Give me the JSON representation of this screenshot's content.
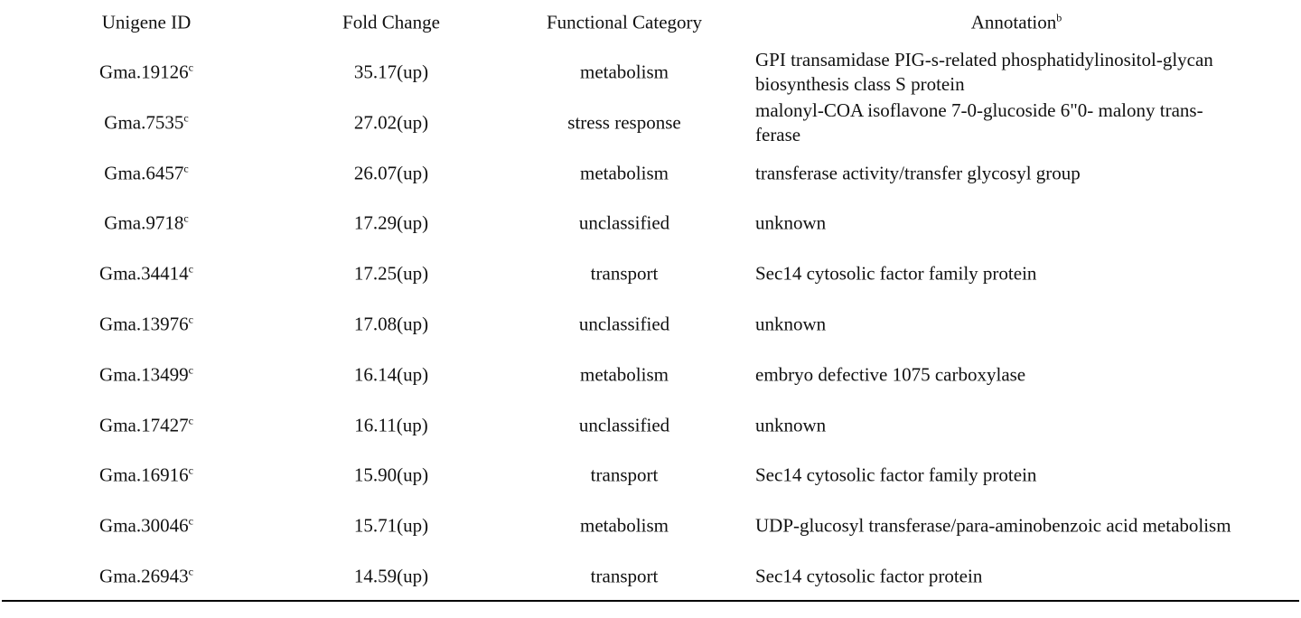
{
  "table": {
    "header": [
      {
        "text": "Unigene ID"
      },
      {
        "text": "Fold Change"
      },
      {
        "text": "Functional Category"
      },
      {
        "text": "Annotation",
        "sup": "b"
      }
    ],
    "rows": [
      {
        "id": "Gma.19126",
        "sup": "c",
        "fold": "35.17(up)",
        "category": "metabolism",
        "annotation": [
          "GPI transamidase PIG-s-related phosphatidylinositol-glycan",
          "biosynthesis class S protein"
        ]
      },
      {
        "id": "Gma.7535",
        "sup": "c",
        "fold": "27.02(up)",
        "category": "stress response",
        "annotation": [
          "malonyl-COA isoflavone 7-0-glucoside 6\"0- malony trans-",
          "ferase"
        ]
      },
      {
        "id": "Gma.6457",
        "sup": "c",
        "fold": "26.07(up)",
        "category": "metabolism",
        "annotation": [
          "transferase activity/transfer glycosyl group"
        ]
      },
      {
        "id": "Gma.9718",
        "sup": "c",
        "fold": "17.29(up)",
        "category": "unclassified",
        "annotation": [
          "unknown"
        ]
      },
      {
        "id": "Gma.34414",
        "sup": "c",
        "fold": "17.25(up)",
        "category": "transport",
        "annotation": [
          "Sec14 cytosolic factor family protein"
        ]
      },
      {
        "id": "Gma.13976",
        "sup": "c",
        "fold": "17.08(up)",
        "category": "unclassified",
        "annotation": [
          "unknown"
        ]
      },
      {
        "id": "Gma.13499",
        "sup": "c",
        "fold": "16.14(up)",
        "category": "metabolism",
        "annotation": [
          "embryo defective 1075 carboxylase"
        ]
      },
      {
        "id": "Gma.17427",
        "sup": "c",
        "fold": "16.11(up)",
        "category": "unclassified",
        "annotation": [
          "unknown"
        ]
      },
      {
        "id": "Gma.16916",
        "sup": "c",
        "fold": "15.90(up)",
        "category": "transport",
        "annotation": [
          "Sec14 cytosolic factor family protein"
        ]
      },
      {
        "id": "Gma.30046",
        "sup": "c",
        "fold": "15.71(up)",
        "category": "metabolism",
        "annotation": [
          "UDP-glucosyl transferase/para-aminobenzoic acid metabolism"
        ]
      },
      {
        "id": "Gma.26943",
        "sup": "c",
        "fold": "14.59(up)",
        "category": "transport",
        "annotation": [
          "Sec14 cytosolic factor protein"
        ]
      }
    ]
  }
}
